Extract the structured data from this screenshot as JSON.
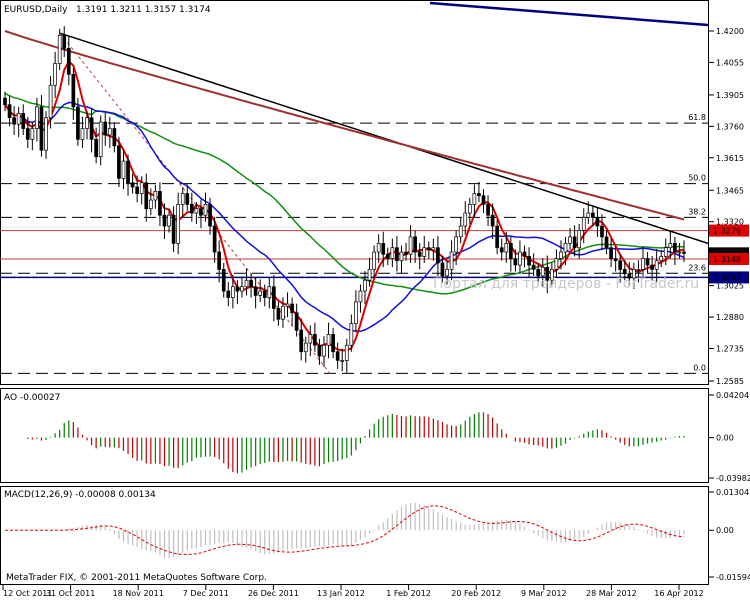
{
  "header": {
    "symbol": "EURUSD,Daily",
    "ohlc": "1.3191 1.3211 1.3157 1.3174"
  },
  "watermark": "Портал для трейдеров - ForTrader.ru",
  "copyright": "MetaTrader FIX, © 2001-2011 MetaQuotes Software Corp.",
  "colors": {
    "candles": "#000000",
    "ma_fast": "#e00000",
    "ma_mid": "#1010e0",
    "ma_slow": "#109010",
    "ma_long": "#a03030",
    "trend_black": "#000000",
    "trend_blue": "#000080",
    "ao_up": "#008000",
    "ao_down": "#c00000",
    "macd_hist": "#c0c0c0",
    "macd_signal": "#e00000",
    "fib": "#000000",
    "hline_red": "#c04040",
    "hline_navy": "#000080",
    "price_box_red": "#e00000",
    "price_box_navy": "#000080",
    "price_box_black": "#000000"
  },
  "chart_data": [
    {
      "type": "candlestick",
      "title": "EURUSD,Daily",
      "ylim": [
        1.2585,
        1.4265
      ],
      "y_ticks": [
        "1.4200",
        "1.4055",
        "1.3905",
        "1.3760",
        "1.3615",
        "1.3465",
        "1.3320",
        "1.3025",
        "1.2880",
        "1.2735",
        "1.2585"
      ],
      "x_ticks": [
        "12 Oct 2011",
        "31 Oct 2011",
        "18 Nov 2011",
        "7 Dec 2011",
        "26 Dec 2011",
        "13 Jan 2012",
        "1 Feb 2012",
        "20 Feb 2012",
        "9 Mar 2012",
        "28 Mar 2012",
        "16 Apr 2012"
      ],
      "fibonacci": [
        {
          "label": "61.8",
          "value": 1.3775
        },
        {
          "label": "50.0",
          "value": 1.3496
        },
        {
          "label": "38.2",
          "value": 1.334
        },
        {
          "label": "23.6",
          "value": 1.3082
        },
        {
          "label": "0.0",
          "value": 1.262
        }
      ],
      "levels": [
        {
          "label": "1.3279",
          "value": 1.3279
        },
        {
          "label": "1.3174",
          "value": 1.3174
        },
        {
          "label": "1.3148",
          "value": 1.3148
        },
        {
          "label": "1.3063",
          "value": 1.3063
        }
      ],
      "closes": [
        1.386,
        1.38,
        1.377,
        1.382,
        1.375,
        1.37,
        1.375,
        1.385,
        1.365,
        1.38,
        1.395,
        1.405,
        1.418,
        1.412,
        1.4,
        1.385,
        1.37,
        1.375,
        1.38,
        1.37,
        1.362,
        1.378,
        1.372,
        1.375,
        1.367,
        1.352,
        1.36,
        1.35,
        1.348,
        1.345,
        1.35,
        1.338,
        1.342,
        1.346,
        1.335,
        1.33,
        1.335,
        1.322,
        1.34,
        1.345,
        1.34,
        1.336,
        1.338,
        1.335,
        1.34,
        1.33,
        1.318,
        1.31,
        1.3,
        1.297,
        1.302,
        1.3,
        1.302,
        1.305,
        1.302,
        1.298,
        1.3,
        1.297,
        1.302,
        1.292,
        1.287,
        1.293,
        1.294,
        1.29,
        1.282,
        1.272,
        1.276,
        1.28,
        1.275,
        1.27,
        1.275,
        1.28,
        1.272,
        1.268,
        1.268,
        1.275,
        1.285,
        1.295,
        1.3,
        1.305,
        1.31,
        1.318,
        1.322,
        1.317,
        1.315,
        1.32,
        1.314,
        1.318,
        1.317,
        1.325,
        1.318,
        1.316,
        1.32,
        1.319,
        1.32,
        1.313,
        1.307,
        1.31,
        1.318,
        1.325,
        1.33,
        1.336,
        1.34,
        1.345,
        1.344,
        1.34,
        1.335,
        1.33,
        1.32,
        1.318,
        1.322,
        1.315,
        1.312,
        1.318,
        1.316,
        1.312,
        1.31,
        1.307,
        1.311,
        1.305,
        1.31,
        1.315,
        1.318,
        1.322,
        1.325,
        1.32,
        1.328,
        1.334,
        1.336,
        1.334,
        1.33,
        1.325,
        1.32,
        1.315,
        1.314,
        1.31,
        1.308,
        1.306,
        1.31,
        1.31,
        1.315,
        1.312,
        1.31,
        1.314,
        1.316,
        1.32,
        1.322,
        1.318,
        1.318,
        1.3174
      ]
    },
    {
      "type": "bar",
      "title": "AO -0.00027",
      "ylim": [
        -0.03982,
        0.04204
      ],
      "y_ticks": [
        "0.04204",
        "0.00",
        "-0.03982"
      ]
    },
    {
      "type": "bar",
      "title": "MACD(12,26,9) -0.00008 0.00134",
      "ylim": [
        -0.01594,
        0.01304
      ],
      "y_ticks": [
        "0.01304",
        "0.00",
        "-0.01594"
      ]
    }
  ]
}
